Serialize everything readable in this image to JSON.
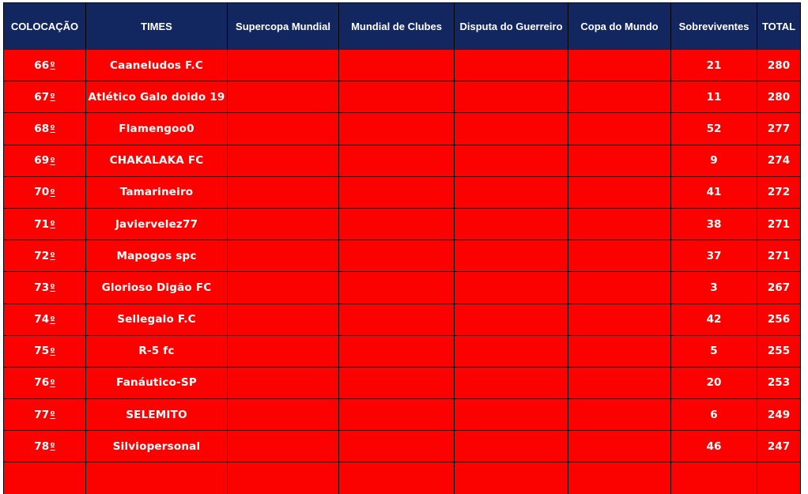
{
  "table": {
    "ordinal_suffix": "º",
    "columns": [
      {
        "key": "colocacao",
        "label": "COLOCAÇÃO"
      },
      {
        "key": "times",
        "label": "TIMES"
      },
      {
        "key": "supercopa",
        "label": "Supercopa Mundial"
      },
      {
        "key": "mundial",
        "label": "Mundial de Clubes"
      },
      {
        "key": "disputa",
        "label": "Disputa do Guerreiro"
      },
      {
        "key": "copa",
        "label": "Copa do Mundo"
      },
      {
        "key": "sobreviventes",
        "label": "Sobreviventes"
      },
      {
        "key": "total",
        "label": "TOTAL"
      }
    ],
    "rows": [
      {
        "rank": "66",
        "team": "Caaneludos F.C",
        "supercopa": "",
        "mundial": "",
        "disputa": "",
        "copa": "",
        "sobreviventes": 21,
        "total": 280
      },
      {
        "rank": "67",
        "team": "Atlético Galo doido 19",
        "supercopa": "",
        "mundial": "",
        "disputa": "",
        "copa": "",
        "sobreviventes": 11,
        "total": 280
      },
      {
        "rank": "68",
        "team": "Flamengoo0",
        "supercopa": "",
        "mundial": "",
        "disputa": "",
        "copa": "",
        "sobreviventes": 52,
        "total": 277
      },
      {
        "rank": "69",
        "team": "CHAKALAKA FC",
        "supercopa": "",
        "mundial": "",
        "disputa": "",
        "copa": "",
        "sobreviventes": 9,
        "total": 274
      },
      {
        "rank": "70",
        "team": "Tamarineiro",
        "supercopa": "",
        "mundial": "",
        "disputa": "",
        "copa": "",
        "sobreviventes": 41,
        "total": 272
      },
      {
        "rank": "71",
        "team": "Javiervelez77",
        "supercopa": "",
        "mundial": "",
        "disputa": "",
        "copa": "",
        "sobreviventes": 38,
        "total": 271
      },
      {
        "rank": "72",
        "team": "Mapogos spc",
        "supercopa": "",
        "mundial": "",
        "disputa": "",
        "copa": "",
        "sobreviventes": 37,
        "total": 271
      },
      {
        "rank": "73",
        "team": "Glorioso Digão FC",
        "supercopa": "",
        "mundial": "",
        "disputa": "",
        "copa": "",
        "sobreviventes": 3,
        "total": 267
      },
      {
        "rank": "74",
        "team": "Sellegalo F.C",
        "supercopa": "",
        "mundial": "",
        "disputa": "",
        "copa": "",
        "sobreviventes": 42,
        "total": 256
      },
      {
        "rank": "75",
        "team": "R-5 fc",
        "supercopa": "",
        "mundial": "",
        "disputa": "",
        "copa": "",
        "sobreviventes": 5,
        "total": 255
      },
      {
        "rank": "76",
        "team": "Fanáutico-SP",
        "supercopa": "",
        "mundial": "",
        "disputa": "",
        "copa": "",
        "sobreviventes": 20,
        "total": 253
      },
      {
        "rank": "77",
        "team": "SELEMITO",
        "supercopa": "",
        "mundial": "",
        "disputa": "",
        "copa": "",
        "sobreviventes": 6,
        "total": 249
      },
      {
        "rank": "78",
        "team": "Silviopersonal",
        "supercopa": "",
        "mundial": "",
        "disputa": "",
        "copa": "",
        "sobreviventes": 46,
        "total": 247
      }
    ]
  },
  "colors": {
    "header_bg": "#12275f",
    "row_bg": "#fb0200",
    "grid": "#000000",
    "text": "#ffffff"
  }
}
